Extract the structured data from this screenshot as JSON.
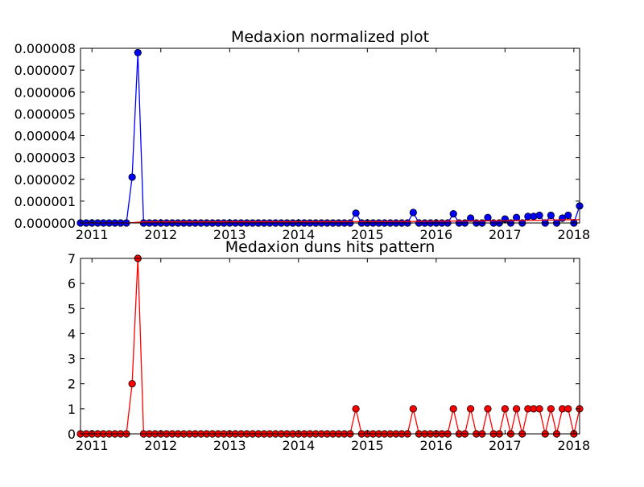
{
  "chart_data": [
    {
      "type": "line",
      "title": "Medaxion normalized plot",
      "x_range": [
        "2010-11-01",
        "2018-02-01"
      ],
      "x_tick_labels": [
        "2011",
        "2012",
        "2013",
        "2014",
        "2015",
        "2016",
        "2017",
        "2018"
      ],
      "ylim": [
        0,
        8e-06
      ],
      "y_tick_labels": [
        "0.000000",
        "0.000001",
        "0.000002",
        "0.000003",
        "0.000004",
        "0.000005",
        "0.000006",
        "0.000007",
        "0.000008"
      ],
      "grid": false,
      "series": [
        {
          "color": "#0000ff",
          "marker": "circle",
          "points": [
            [
              "2010-11-01",
              0
            ],
            [
              "2010-12-01",
              0
            ],
            [
              "2011-01-01",
              0
            ],
            [
              "2011-02-01",
              0
            ],
            [
              "2011-03-01",
              0
            ],
            [
              "2011-04-01",
              0
            ],
            [
              "2011-05-01",
              0
            ],
            [
              "2011-06-01",
              0
            ],
            [
              "2011-07-01",
              0
            ],
            [
              "2011-08-01",
              2.1e-06
            ],
            [
              "2011-09-01",
              7.8e-06
            ],
            [
              "2011-10-01",
              0
            ],
            [
              "2011-11-01",
              0
            ],
            [
              "2011-12-01",
              0
            ],
            [
              "2012-01-01",
              0
            ],
            [
              "2012-02-01",
              0
            ],
            [
              "2012-03-01",
              0
            ],
            [
              "2012-04-01",
              0
            ],
            [
              "2012-05-01",
              0
            ],
            [
              "2012-06-01",
              0
            ],
            [
              "2012-07-01",
              0
            ],
            [
              "2012-08-01",
              0
            ],
            [
              "2012-09-01",
              0
            ],
            [
              "2012-10-01",
              0
            ],
            [
              "2012-11-01",
              0
            ],
            [
              "2012-12-01",
              0
            ],
            [
              "2013-01-01",
              0
            ],
            [
              "2013-02-01",
              0
            ],
            [
              "2013-03-01",
              0
            ],
            [
              "2013-04-01",
              0
            ],
            [
              "2013-05-01",
              0
            ],
            [
              "2013-06-01",
              0
            ],
            [
              "2013-07-01",
              0
            ],
            [
              "2013-08-01",
              0
            ],
            [
              "2013-09-01",
              0
            ],
            [
              "2013-10-01",
              0
            ],
            [
              "2013-11-01",
              0
            ],
            [
              "2013-12-01",
              0
            ],
            [
              "2014-01-01",
              0
            ],
            [
              "2014-02-01",
              0
            ],
            [
              "2014-03-01",
              0
            ],
            [
              "2014-04-01",
              0
            ],
            [
              "2014-05-01",
              0
            ],
            [
              "2014-06-01",
              0
            ],
            [
              "2014-07-01",
              0
            ],
            [
              "2014-08-01",
              0
            ],
            [
              "2014-09-01",
              0
            ],
            [
              "2014-10-01",
              0
            ],
            [
              "2014-11-01",
              4.5e-07
            ],
            [
              "2014-12-01",
              0
            ],
            [
              "2015-01-01",
              0
            ],
            [
              "2015-02-01",
              0
            ],
            [
              "2015-03-01",
              0
            ],
            [
              "2015-04-01",
              0
            ],
            [
              "2015-05-01",
              0
            ],
            [
              "2015-06-01",
              0
            ],
            [
              "2015-07-01",
              0
            ],
            [
              "2015-08-01",
              0
            ],
            [
              "2015-09-01",
              4.8e-07
            ],
            [
              "2015-10-01",
              0
            ],
            [
              "2015-11-01",
              0
            ],
            [
              "2015-12-01",
              0
            ],
            [
              "2016-01-01",
              0
            ],
            [
              "2016-02-01",
              0
            ],
            [
              "2016-03-01",
              0
            ],
            [
              "2016-04-01",
              4.2e-07
            ],
            [
              "2016-05-01",
              0
            ],
            [
              "2016-06-01",
              0
            ],
            [
              "2016-07-01",
              2.2e-07
            ],
            [
              "2016-08-01",
              0
            ],
            [
              "2016-09-01",
              0
            ],
            [
              "2016-10-01",
              2.5e-07
            ],
            [
              "2016-11-01",
              0
            ],
            [
              "2016-12-01",
              0
            ],
            [
              "2017-01-01",
              1.8e-07
            ],
            [
              "2017-02-01",
              0
            ],
            [
              "2017-03-01",
              2.5e-07
            ],
            [
              "2017-04-01",
              0
            ],
            [
              "2017-05-01",
              3e-07
            ],
            [
              "2017-06-01",
              3e-07
            ],
            [
              "2017-07-01",
              3.5e-07
            ],
            [
              "2017-08-01",
              0
            ],
            [
              "2017-09-01",
              3.5e-07
            ],
            [
              "2017-10-01",
              0
            ],
            [
              "2017-11-01",
              2.2e-07
            ],
            [
              "2017-12-01",
              3.5e-07
            ],
            [
              "2018-01-01",
              0
            ],
            [
              "2018-02-01",
              7.8e-07
            ]
          ]
        },
        {
          "color": "#ff0000",
          "marker": "none",
          "points": [
            [
              "2010-11-01",
              0
            ],
            [
              "2011-07-01",
              0
            ],
            [
              "2011-10-01",
              5e-08
            ],
            [
              "2014-11-01",
              6e-08
            ],
            [
              "2015-09-01",
              7e-08
            ],
            [
              "2016-04-01",
              9e-08
            ],
            [
              "2016-12-01",
              1e-07
            ],
            [
              "2017-06-01",
              1.2e-07
            ],
            [
              "2017-12-01",
              1.5e-07
            ],
            [
              "2018-02-01",
              1.5e-07
            ]
          ]
        }
      ]
    },
    {
      "type": "line",
      "title": "Medaxion duns hits pattern",
      "x_range": [
        "2010-11-01",
        "2018-02-01"
      ],
      "x_tick_labels": [
        "2011",
        "2012",
        "2013",
        "2014",
        "2015",
        "2016",
        "2017",
        "2018"
      ],
      "ylim": [
        0,
        7
      ],
      "y_tick_labels": [
        "0",
        "1",
        "2",
        "3",
        "4",
        "5",
        "6",
        "7"
      ],
      "grid": false,
      "series": [
        {
          "color": "#ff0000",
          "marker": "circle",
          "points": [
            [
              "2010-11-01",
              0
            ],
            [
              "2010-12-01",
              0
            ],
            [
              "2011-01-01",
              0
            ],
            [
              "2011-02-01",
              0
            ],
            [
              "2011-03-01",
              0
            ],
            [
              "2011-04-01",
              0
            ],
            [
              "2011-05-01",
              0
            ],
            [
              "2011-06-01",
              0
            ],
            [
              "2011-07-01",
              0
            ],
            [
              "2011-08-01",
              2
            ],
            [
              "2011-09-01",
              7
            ],
            [
              "2011-10-01",
              0
            ],
            [
              "2011-11-01",
              0
            ],
            [
              "2011-12-01",
              0
            ],
            [
              "2012-01-01",
              0
            ],
            [
              "2012-02-01",
              0
            ],
            [
              "2012-03-01",
              0
            ],
            [
              "2012-04-01",
              0
            ],
            [
              "2012-05-01",
              0
            ],
            [
              "2012-06-01",
              0
            ],
            [
              "2012-07-01",
              0
            ],
            [
              "2012-08-01",
              0
            ],
            [
              "2012-09-01",
              0
            ],
            [
              "2012-10-01",
              0
            ],
            [
              "2012-11-01",
              0
            ],
            [
              "2012-12-01",
              0
            ],
            [
              "2013-01-01",
              0
            ],
            [
              "2013-02-01",
              0
            ],
            [
              "2013-03-01",
              0
            ],
            [
              "2013-04-01",
              0
            ],
            [
              "2013-05-01",
              0
            ],
            [
              "2013-06-01",
              0
            ],
            [
              "2013-07-01",
              0
            ],
            [
              "2013-08-01",
              0
            ],
            [
              "2013-09-01",
              0
            ],
            [
              "2013-10-01",
              0
            ],
            [
              "2013-11-01",
              0
            ],
            [
              "2013-12-01",
              0
            ],
            [
              "2014-01-01",
              0
            ],
            [
              "2014-02-01",
              0
            ],
            [
              "2014-03-01",
              0
            ],
            [
              "2014-04-01",
              0
            ],
            [
              "2014-05-01",
              0
            ],
            [
              "2014-06-01",
              0
            ],
            [
              "2014-07-01",
              0
            ],
            [
              "2014-08-01",
              0
            ],
            [
              "2014-09-01",
              0
            ],
            [
              "2014-10-01",
              0
            ],
            [
              "2014-11-01",
              1
            ],
            [
              "2014-12-01",
              0
            ],
            [
              "2015-01-01",
              0
            ],
            [
              "2015-02-01",
              0
            ],
            [
              "2015-03-01",
              0
            ],
            [
              "2015-04-01",
              0
            ],
            [
              "2015-05-01",
              0
            ],
            [
              "2015-06-01",
              0
            ],
            [
              "2015-07-01",
              0
            ],
            [
              "2015-08-01",
              0
            ],
            [
              "2015-09-01",
              1
            ],
            [
              "2015-10-01",
              0
            ],
            [
              "2015-11-01",
              0
            ],
            [
              "2015-12-01",
              0
            ],
            [
              "2016-01-01",
              0
            ],
            [
              "2016-02-01",
              0
            ],
            [
              "2016-03-01",
              0
            ],
            [
              "2016-04-01",
              1
            ],
            [
              "2016-05-01",
              0
            ],
            [
              "2016-06-01",
              0
            ],
            [
              "2016-07-01",
              1
            ],
            [
              "2016-08-01",
              0
            ],
            [
              "2016-09-01",
              0
            ],
            [
              "2016-10-01",
              1
            ],
            [
              "2016-11-01",
              0
            ],
            [
              "2016-12-01",
              0
            ],
            [
              "2017-01-01",
              1
            ],
            [
              "2017-02-01",
              0
            ],
            [
              "2017-03-01",
              1
            ],
            [
              "2017-04-01",
              0
            ],
            [
              "2017-05-01",
              1
            ],
            [
              "2017-06-01",
              1
            ],
            [
              "2017-07-01",
              1
            ],
            [
              "2017-08-01",
              0
            ],
            [
              "2017-09-01",
              1
            ],
            [
              "2017-10-01",
              0
            ],
            [
              "2017-11-01",
              1
            ],
            [
              "2017-12-01",
              1
            ],
            [
              "2018-01-01",
              0
            ],
            [
              "2018-02-01",
              1
            ]
          ]
        }
      ]
    }
  ]
}
